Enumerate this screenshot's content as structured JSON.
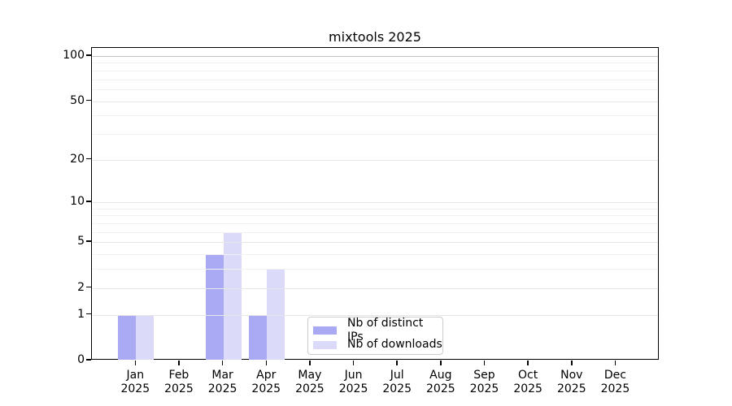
{
  "title": "mixtools 2025",
  "chart_data": {
    "type": "bar",
    "title": "mixtools 2025",
    "year": "2025",
    "categories": [
      "Jan",
      "Feb",
      "Mar",
      "Apr",
      "May",
      "Jun",
      "Jul",
      "Aug",
      "Sep",
      "Oct",
      "Nov",
      "Dec"
    ],
    "series": [
      {
        "name": "Nb of distinct IPs",
        "color": "#a9a9f4",
        "values": [
          1,
          0,
          4,
          1,
          0,
          0,
          0,
          0,
          0,
          0,
          0,
          0
        ]
      },
      {
        "name": "Nb of downloads",
        "color": "#dbdbf9",
        "values": [
          1,
          0,
          6,
          3,
          0,
          0,
          0,
          0,
          0,
          0,
          0,
          0
        ]
      }
    ],
    "xlabel": "",
    "ylabel": "",
    "yscale": "log1p",
    "ylim": [
      0,
      113
    ],
    "y_ticks": [
      0,
      1,
      2,
      5,
      10,
      20,
      50,
      100
    ],
    "y_minor_gridlines": [
      3,
      4,
      6,
      7,
      8,
      9,
      30,
      40,
      60,
      70,
      80,
      90
    ],
    "grid": true,
    "legend_position": "lower center",
    "legend_entries": [
      "Nb of distinct IPs",
      "Nb of downloads"
    ]
  },
  "colors": {
    "distinct_ips": "#a9a9f4",
    "downloads": "#dbdbf9",
    "grid_minor": "#f1f1f1",
    "grid_major": "#e6e6e6",
    "grid_top": "#c0c0c0",
    "axis": "#000000",
    "legend_border": "#cccccc",
    "background": "#ffffff"
  }
}
